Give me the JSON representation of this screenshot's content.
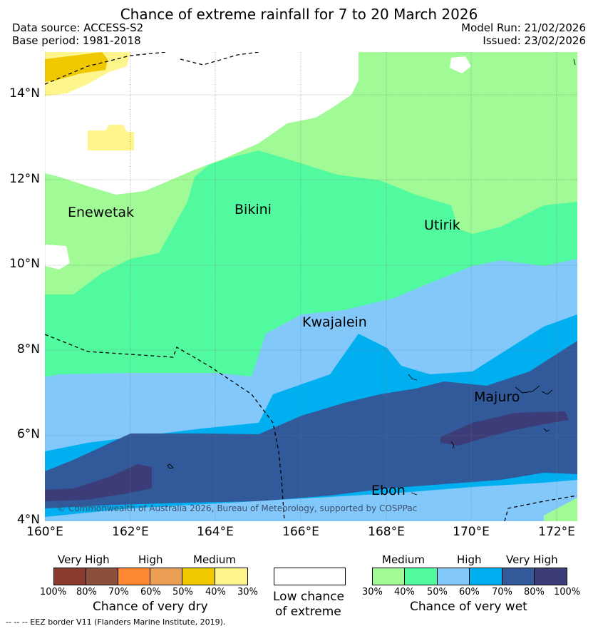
{
  "title": "Chance of extreme rainfall for 7 to 20 March 2026",
  "data_source": "Data source: ACCESS-S2",
  "base_period": "Base period: 1981-2018",
  "model_run": "Model Run: 21/02/2026",
  "issued": "Issued: 23/02/2026",
  "lat_ticks": [
    "14°N",
    "12°N",
    "10°N",
    "8°N",
    "6°N",
    "4°N"
  ],
  "lon_ticks": [
    "160°E",
    "162°E",
    "164°E",
    "166°E",
    "168°E",
    "170°E",
    "172°E"
  ],
  "places": {
    "enewetak": "Enewetak",
    "bikini": "Bikini",
    "utirik": "Utirik",
    "kwajalein": "Kwajalein",
    "majuro": "Majuro",
    "ebon": "Ebon"
  },
  "copyright": "© Commonwealth of Australia 2026, Bureau of Meteorology, supported by COSPPac",
  "legend_dry": {
    "labels": [
      "Very High",
      "High",
      "Medium"
    ],
    "ticks": [
      "100%",
      "80%",
      "70%",
      "60%",
      "50%",
      "40%",
      "30%"
    ],
    "colors": [
      "#8b3a2e",
      "#8c4f3c",
      "#fe8732",
      "#ea9f54",
      "#f0c800",
      "#fff58d"
    ],
    "title": "Chance of very dry"
  },
  "legend_low": {
    "line1": "Low chance",
    "line2": "of extreme"
  },
  "legend_wet": {
    "labels": [
      "Medium",
      "High",
      "Very High"
    ],
    "ticks": [
      "30%",
      "40%",
      "50%",
      "60%",
      "70%",
      "80%",
      "100%"
    ],
    "colors": [
      "#a0fa96",
      "#52fa9f",
      "#82c8fa",
      "#00aff0",
      "#325a9b",
      "#3c3c78"
    ],
    "title": "Chance of very wet"
  },
  "eez_note": "--  --  -- EEZ border V11 (Flanders Marine Institute, 2019).",
  "colors": {
    "dry_40": "#fff58d",
    "dry_50": "#f0c800",
    "wet_30": "#a0fa96",
    "wet_40": "#52fa9f",
    "wet_50": "#82c8fa",
    "wet_60": "#00aff0",
    "wet_70": "#325a9b",
    "wet_80": "#3c3c78"
  }
}
